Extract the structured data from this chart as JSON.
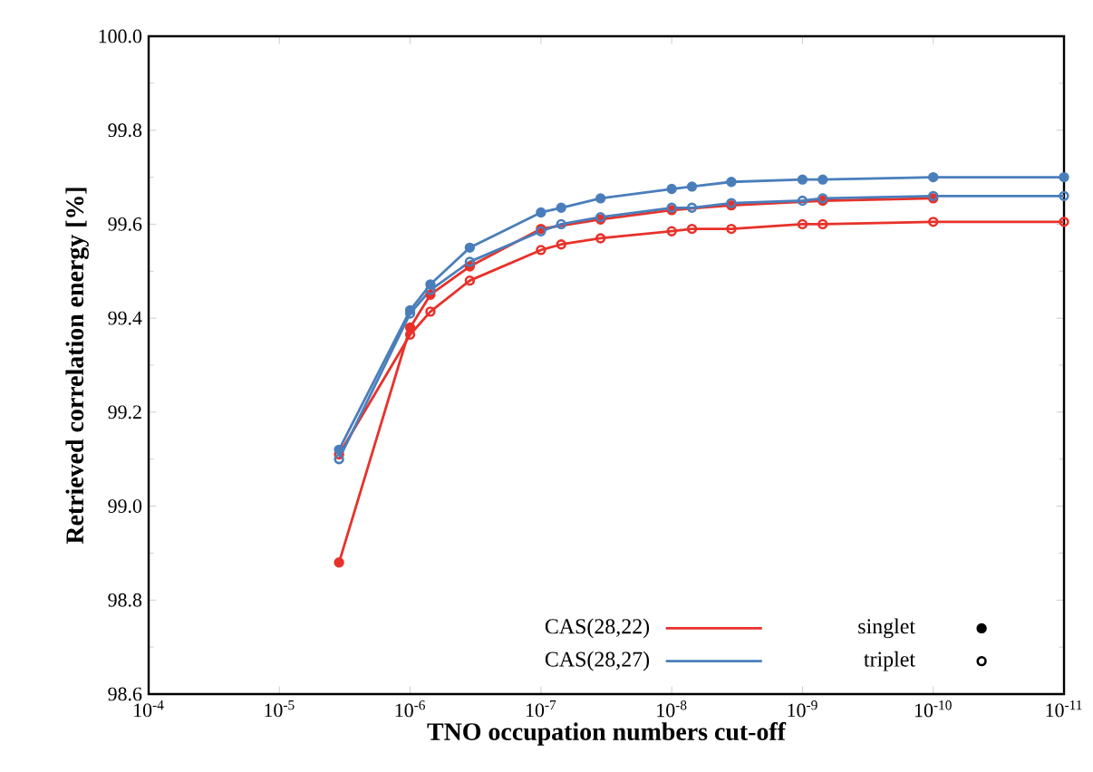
{
  "chart_data": {
    "type": "line",
    "xlabel": "TNO occupation numbers cut-off",
    "ylabel": "Retrieved correlation energy [%]",
    "log": "x",
    "x": [
      3.5e-06,
      1e-06,
      7e-07,
      3.5e-07,
      1e-07,
      7e-08,
      3.5e-08,
      1e-08,
      7e-09,
      3.5e-09,
      1e-09,
      7e-10,
      1e-10,
      1e-11
    ],
    "series": [
      {
        "name": "CAS(28,22)",
        "color": "#e8312a",
        "marker": "circle",
        "values": [
          98.88,
          99.38,
          99.45,
          99.51,
          99.59,
          null,
          99.61,
          99.63,
          null,
          99.64,
          null,
          99.65,
          99.655,
          null
        ]
      },
      {
        "color": "#e8312a",
        "marker": "circle-open",
        "values": [
          99.11,
          99.365,
          99.414,
          99.48,
          99.545,
          99.557,
          99.57,
          99.585,
          99.59,
          99.59,
          99.6,
          99.6,
          99.605,
          99.605
        ]
      },
      {
        "name": "CAS(28,27)",
        "color": "#4a7ebb",
        "marker": "circle",
        "values": [
          99.12,
          99.417,
          99.472,
          99.55,
          99.625,
          99.635,
          99.655,
          99.675,
          99.68,
          99.69,
          99.695,
          99.695,
          99.7,
          99.7
        ]
      },
      {
        "color": "#4a7ebb",
        "marker": "circle-open",
        "values": [
          99.1,
          99.41,
          99.46,
          99.52,
          99.585,
          99.6,
          99.615,
          99.635,
          99.635,
          99.645,
          99.65,
          99.655,
          99.66,
          99.66
        ]
      }
    ],
    "xlim": [
      0.0001,
      1e-11
    ],
    "xticks": [
      {
        "value": 0.0001,
        "label": "10$^{-4}$"
      },
      {
        "value": 1e-05,
        "label": "10$^{-5}$"
      },
      {
        "value": 1e-06,
        "label": "10$^{-6}$"
      },
      {
        "value": 1e-07,
        "label": "10$^{-7}$"
      },
      {
        "value": 1e-08,
        "label": "10$^{-8}$"
      },
      {
        "value": 1e-09,
        "label": "10$^{-9}$"
      },
      {
        "value": 1e-10,
        "label": "10$^{-10}$"
      },
      {
        "value": 1e-11,
        "label": "10$^{-11}$"
      }
    ],
    "ylim": [
      98.6,
      100.0
    ],
    "yticks": [
      {
        "value": 98.6,
        "label": "98.6"
      },
      {
        "value": 98.8,
        "label": "98.8"
      },
      {
        "value": 99.0,
        "label": "99.0"
      },
      {
        "value": 99.2,
        "label": "99.2"
      },
      {
        "value": 99.4,
        "label": "99.4"
      },
      {
        "value": 99.6,
        "label": "99.6"
      },
      {
        "value": 99.8,
        "label": "99.8"
      },
      {
        "value": 100.0,
        "label": "100.0"
      }
    ],
    "grid": false,
    "legend": "bottom right",
    "annotations": [
      "singlet",
      "triplet"
    ]
  }
}
